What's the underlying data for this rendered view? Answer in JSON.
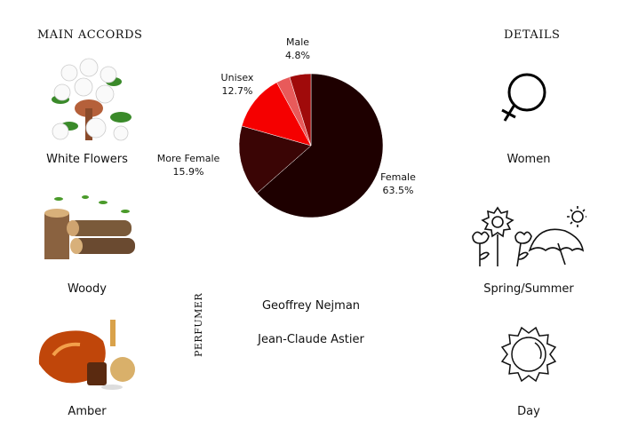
{
  "main_accords": {
    "title": "MAIN ACCORDS",
    "items": [
      {
        "label": "White Flowers",
        "icon": "white-flowers-image"
      },
      {
        "label": "Woody",
        "icon": "wood-logs-image"
      },
      {
        "label": "Amber",
        "icon": "amber-stone-image"
      }
    ]
  },
  "details": {
    "title": "DETAILS",
    "items": [
      {
        "label": "Women",
        "icon": "female-symbol-icon"
      },
      {
        "label": "Spring/Summer",
        "icon": "spring-summer-icon"
      },
      {
        "label": "Day",
        "icon": "sun-icon"
      }
    ]
  },
  "perfumer": {
    "title": "PERFUMER",
    "names": [
      "Geoffrey Nejman",
      "Jean-Claude Astier"
    ]
  },
  "chart_data": {
    "type": "pie",
    "start": "top",
    "direction": "clockwise",
    "slices": [
      {
        "name": "Female",
        "value": 63.5,
        "label": "63.5%",
        "color": "#1e0000"
      },
      {
        "name": "More Female",
        "value": 15.9,
        "label": "15.9%",
        "color": "#3a0505"
      },
      {
        "name": "Unisex",
        "value": 12.7,
        "label": "12.7%",
        "color": "#f50000"
      },
      {
        "name": "",
        "value": 3.1,
        "label": "",
        "color": "#e85a5a"
      },
      {
        "name": "Male",
        "value": 4.8,
        "label": "4.8%",
        "color": "#a00a0a"
      }
    ]
  }
}
